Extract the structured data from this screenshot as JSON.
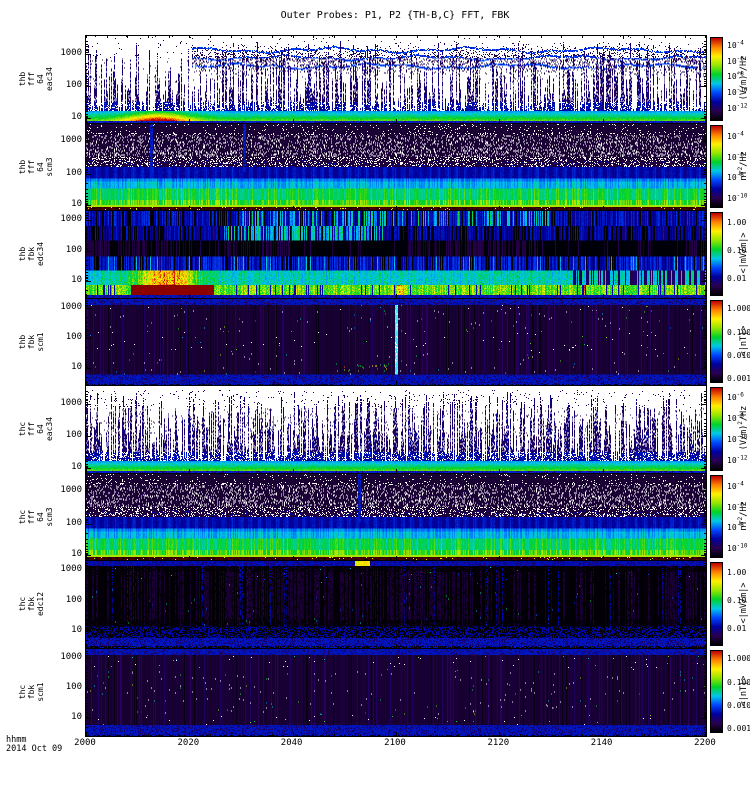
{
  "title": "Outer Probes: P1, P2 {TH-B,C} FFT, FBK",
  "bottom_left": {
    "line1": "hhmm",
    "line2": "2014 Oct 09"
  },
  "chart_data": {
    "type": "heatmap",
    "title": "Outer Probes: P1, P2 {TH-B,C} FFT, FBK",
    "subtype": "multi-panel time-frequency spectrogram (tplot)",
    "x_axis": {
      "unit": "hhmm",
      "date": "2014 Oct 09",
      "ticks": [
        [
          "2000",
          0.0
        ],
        [
          "2020",
          0.1667
        ],
        [
          "2040",
          0.3333
        ],
        [
          "2100",
          0.5
        ],
        [
          "2120",
          0.6667
        ],
        [
          "2140",
          0.8333
        ],
        [
          "2200",
          1.0
        ]
      ]
    },
    "y_axis_scale": "log frequency (Hz)",
    "legend_position": "right colorbars, one per panel",
    "colorbar_gradient": [
      "#be0000",
      "#ff8200",
      "#fff000",
      "#96e600",
      "#00d228",
      "#00c8e6",
      "#0046ff",
      "#0000a0",
      "#2a0050",
      "#000000"
    ],
    "panels": [
      {
        "probe": "P1",
        "label_lines": [
          "thb",
          "fff",
          "64",
          "eac34"
        ],
        "unit": "(V/m)^2^/Hz",
        "yticks": [
          [
            "1000",
            0.2
          ],
          [
            "100",
            0.57
          ],
          [
            "10",
            0.93
          ]
        ],
        "cticks": [
          [
            "10^-4^",
            0.09
          ],
          [
            "10^-6^",
            0.28
          ],
          [
            "10^-8^",
            0.47
          ],
          [
            "10^-10^",
            0.66
          ],
          [
            "10^-12^",
            0.85
          ]
        ],
        "texture": "fff_e",
        "seed": 101,
        "opts": {
          "blob": true,
          "cloud": true
        },
        "features": "white bg, dense dark vertical E-field spikes, cyan-green band near 10 Hz, yellow-orange enhancement ~2008-2016, banded blue emissions aloft"
      },
      {
        "probe": "P1",
        "label_lines": [
          "thb",
          "fff",
          "64",
          "scm3"
        ],
        "unit": "nT^2^/Hz",
        "yticks": [
          [
            "1000",
            0.2
          ],
          [
            "100",
            0.57
          ],
          [
            "10",
            0.93
          ]
        ],
        "cticks": [
          [
            "10^-4^",
            0.13
          ],
          [
            "10^-6^",
            0.38
          ],
          [
            "10^-8^",
            0.63
          ],
          [
            "10^-10^",
            0.88
          ]
        ],
        "texture": "fff_b",
        "seed": 202,
        "opts": {
          "vlines": [
            0.105,
            0.255
          ]
        },
        "features": "dark purple speckled top, horizontal blue/cyan/green bands below 100 Hz, yellow line near bottom"
      },
      {
        "probe": "P1",
        "label_lines": [
          "thb",
          "fbk",
          "edc34"
        ],
        "unit": "<|mV/m|>",
        "yticks": [
          [
            "1000",
            0.1
          ],
          [
            "100",
            0.45
          ],
          [
            "10",
            0.79
          ]
        ],
        "cticks": [
          [
            "1.00",
            0.12
          ],
          [
            "0.10",
            0.45
          ],
          [
            "0.01",
            0.78
          ]
        ],
        "texture": "fbk_e34",
        "seed": 303,
        "opts": {},
        "features": "six filter-bank rows of striped color, strong yellow/red low-frequency blob ~2005-2015, red streak ~2101"
      },
      {
        "probe": "P1",
        "label_lines": [
          "thb",
          "fbk",
          "scm1"
        ],
        "unit": "<|nT|>",
        "yticks": [
          [
            "1000",
            0.1
          ],
          [
            "100",
            0.45
          ],
          [
            "10",
            0.79
          ]
        ],
        "cticks": [
          [
            "1.000",
            0.1
          ],
          [
            "0.100",
            0.38
          ],
          [
            "0.010",
            0.66
          ],
          [
            "0.001",
            0.94
          ]
        ],
        "texture": "scm1",
        "seed": 404,
        "opts": {
          "vline": true,
          "specks": true
        },
        "features": "dark purple body, blue top/bottom bands, bright cyan column ~2101"
      },
      {
        "probe": "P2",
        "label_lines": [
          "thc",
          "fff",
          "64",
          "eac34"
        ],
        "unit": "(V/m)^2^/Hz",
        "yticks": [
          [
            "1000",
            0.2
          ],
          [
            "100",
            0.57
          ],
          [
            "10",
            0.93
          ]
        ],
        "cticks": [
          [
            "10^-6^",
            0.12
          ],
          [
            "10^-8^",
            0.37
          ],
          [
            "10^-10^",
            0.62
          ],
          [
            "10^-12^",
            0.87
          ]
        ],
        "texture": "fff_e",
        "seed": 505,
        "opts": {
          "dense": true
        },
        "features": "white bg with very dense tall blue spike forest, cyan-green band near 10 Hz"
      },
      {
        "probe": "P2",
        "label_lines": [
          "thc",
          "fff",
          "64",
          "scm3"
        ],
        "unit": "nT^2^/Hz",
        "yticks": [
          [
            "1000",
            0.2
          ],
          [
            "100",
            0.57
          ],
          [
            "10",
            0.93
          ]
        ],
        "cticks": [
          [
            "10^-4^",
            0.13
          ],
          [
            "10^-6^",
            0.38
          ],
          [
            "10^-8^",
            0.63
          ],
          [
            "10^-10^",
            0.88
          ]
        ],
        "texture": "fff_b",
        "seed": 606,
        "opts": {
          "vlines": [
            0.44
          ]
        },
        "features": "dark speckled top, banded blue/cyan/green bottom"
      },
      {
        "probe": "P2",
        "label_lines": [
          "thc",
          "fbk",
          "edc12"
        ],
        "unit": "<|mV/m|>",
        "yticks": [
          [
            "1000",
            0.1
          ],
          [
            "100",
            0.45
          ],
          [
            "10",
            0.79
          ]
        ],
        "cticks": [
          [
            "1.00",
            0.12
          ],
          [
            "0.10",
            0.45
          ],
          [
            "0.01",
            0.78
          ]
        ],
        "texture": "fbk_e12",
        "seed": 707,
        "opts": {},
        "features": "mostly black with faint purple striping, blue band top and bottom, yellow fleck ~2053 at top"
      },
      {
        "probe": "P2",
        "label_lines": [
          "thc",
          "fbk",
          "scm1"
        ],
        "unit": "<|nT|>",
        "yticks": [
          [
            "1000",
            0.1
          ],
          [
            "100",
            0.45
          ],
          [
            "10",
            0.79
          ]
        ],
        "cticks": [
          [
            "1.000",
            0.1
          ],
          [
            "0.100",
            0.38
          ],
          [
            "0.010",
            0.66
          ],
          [
            "0.001",
            0.94
          ]
        ],
        "texture": "scm1",
        "seed": 808,
        "opts": {},
        "features": "dark purple speckled body with blue bands top and bottom"
      }
    ]
  }
}
